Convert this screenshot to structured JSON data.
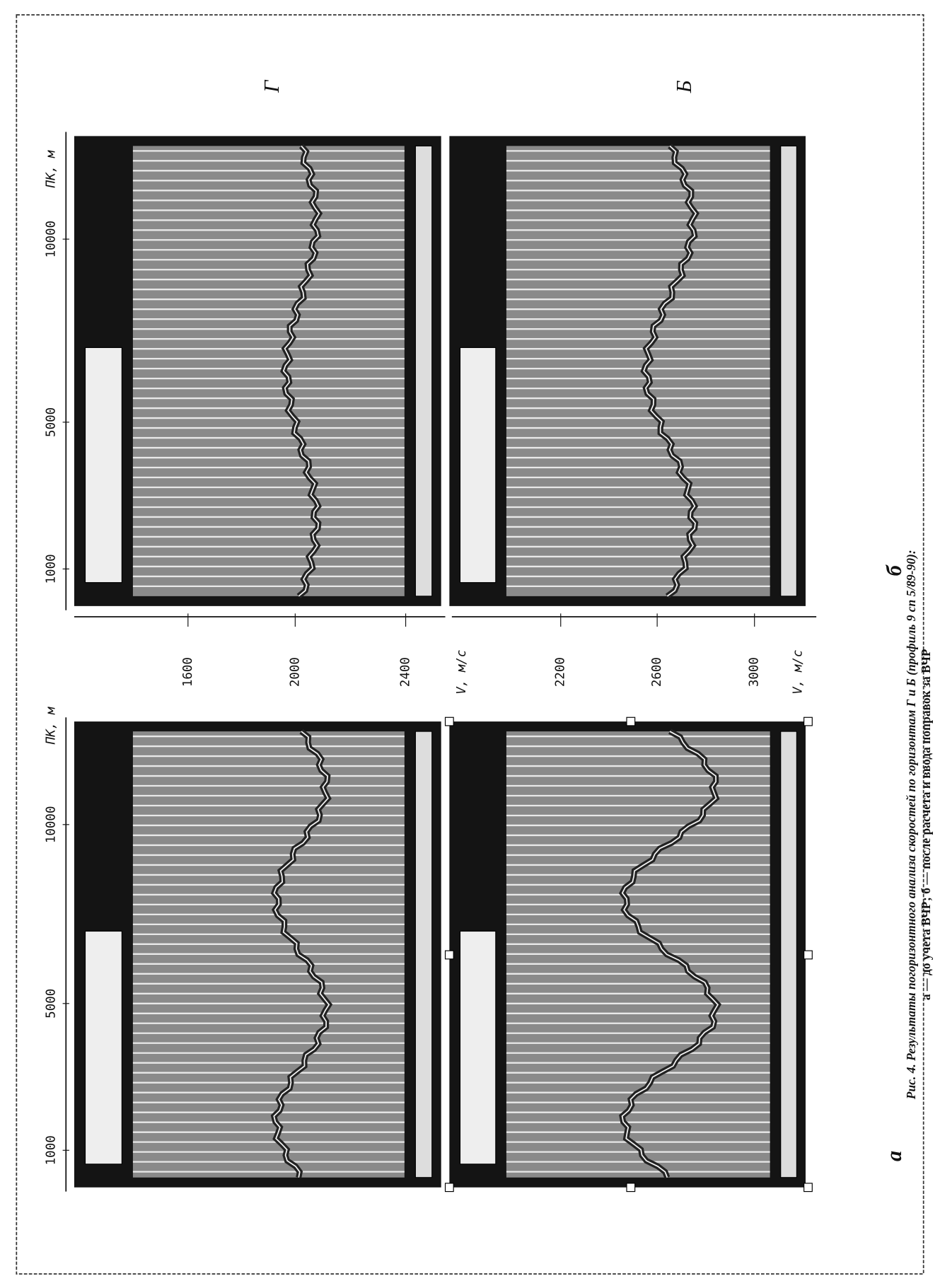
{
  "horizons": [
    {
      "label": "Г",
      "v_axis": {
        "ticks": [
          1600,
          2000,
          2400
        ],
        "title": "V, м/с"
      }
    },
    {
      "label": "Б",
      "v_axis": {
        "ticks": [
          2200,
          2600,
          3000
        ],
        "title": "V, м/с"
      }
    }
  ],
  "columns": [
    {
      "label": "б",
      "pk_axis": {
        "title": "ПК, м",
        "ticks": [
          1000,
          5000,
          10000
        ]
      }
    },
    {
      "label": "а",
      "pk_axis": {
        "title": "ПК, м",
        "ticks": [
          1000,
          5000,
          10000
        ]
      }
    }
  ],
  "caption": {
    "line1": "Рис. 4. Результаты погоризонтного анализа скоростей по горизонтам Г и Б (профиль 9 сп 5/89-90):",
    "line2": "а — до учета ВЧР; б — после расчета и ввода поправок за ВЧР"
  }
}
